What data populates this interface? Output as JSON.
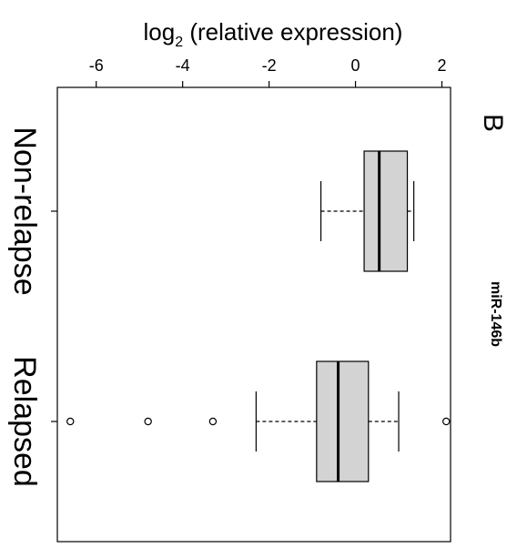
{
  "chart_data": {
    "type": "boxplot",
    "orientation": "horizontal",
    "axis": {
      "label_main": "log",
      "label_sub": "2",
      "label_rest": " (relative expression)",
      "ticks": [
        -6,
        -4,
        -2,
        0,
        2
      ],
      "tick_labels": [
        "-6",
        "-4",
        "-2",
        "0",
        "2"
      ],
      "xlim": [
        -6.9,
        2.2
      ]
    },
    "categories": [
      "Non-relapse",
      "Relapsed"
    ],
    "series": [
      {
        "category": "Non-relapse",
        "whisker_low": -0.8,
        "q1": 0.2,
        "median": 0.55,
        "q3": 1.2,
        "whisker_high": 1.35,
        "outliers": []
      },
      {
        "category": "Relapsed",
        "whisker_low": -2.3,
        "q1": -0.9,
        "median": -0.4,
        "q3": 0.3,
        "whisker_high": 1.0,
        "outliers": [
          -6.6,
          -4.8,
          -3.3,
          2.1
        ]
      }
    ],
    "annotation": "miR-146b",
    "panel_label": "B",
    "colors": {
      "box_fill": "#d3d3d3",
      "stroke": "#000000"
    }
  }
}
